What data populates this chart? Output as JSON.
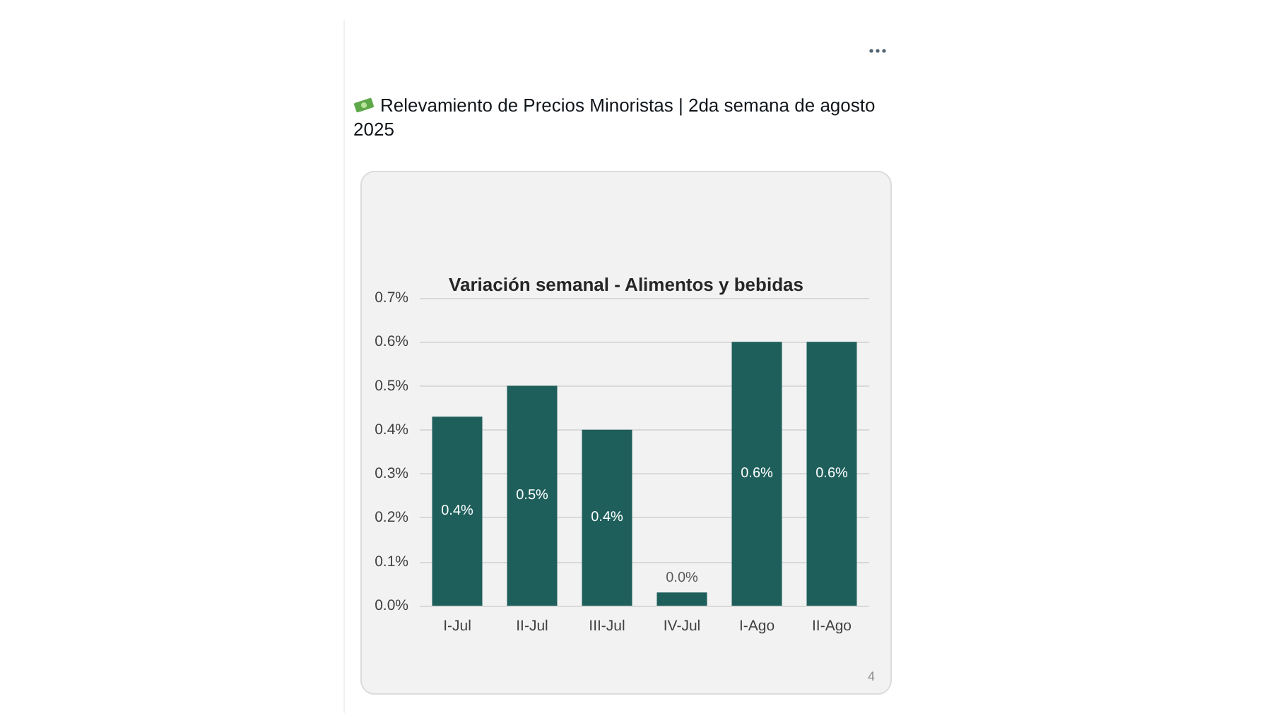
{
  "chart_data": {
    "type": "bar",
    "title": "Variación semanal - Alimentos y bebidas",
    "subtitle": "Relevamiento de Precios Minoristas | 2da semana de agosto 2025",
    "categories": [
      "I-Jul",
      "II-Jul",
      "III-Jul",
      "IV-Jul",
      "I-Ago",
      "II-Ago"
    ],
    "values": [
      0.43,
      0.5,
      0.4,
      0.03,
      0.6,
      0.6
    ],
    "value_labels": [
      "0.4%",
      "0.5%",
      "0.4%",
      "0.0%",
      "0.6%",
      "0.6%"
    ],
    "color": "#1e5f5b",
    "ylim": [
      0,
      0.7
    ],
    "yticks": [
      {
        "value": 0,
        "label": "0.0%"
      },
      {
        "value": 0.1,
        "label": "0.1%"
      },
      {
        "value": 0.2,
        "label": "0.2%"
      },
      {
        "value": 0.3,
        "label": "0.3%"
      },
      {
        "value": 0.4,
        "label": "0.4%"
      },
      {
        "value": 0.5,
        "label": "0.5%"
      },
      {
        "value": 0.6,
        "label": "0.6%"
      },
      {
        "value": 0.7,
        "label": "0.7%"
      }
    ],
    "grid": "y",
    "annotations": [
      "4"
    ]
  }
}
